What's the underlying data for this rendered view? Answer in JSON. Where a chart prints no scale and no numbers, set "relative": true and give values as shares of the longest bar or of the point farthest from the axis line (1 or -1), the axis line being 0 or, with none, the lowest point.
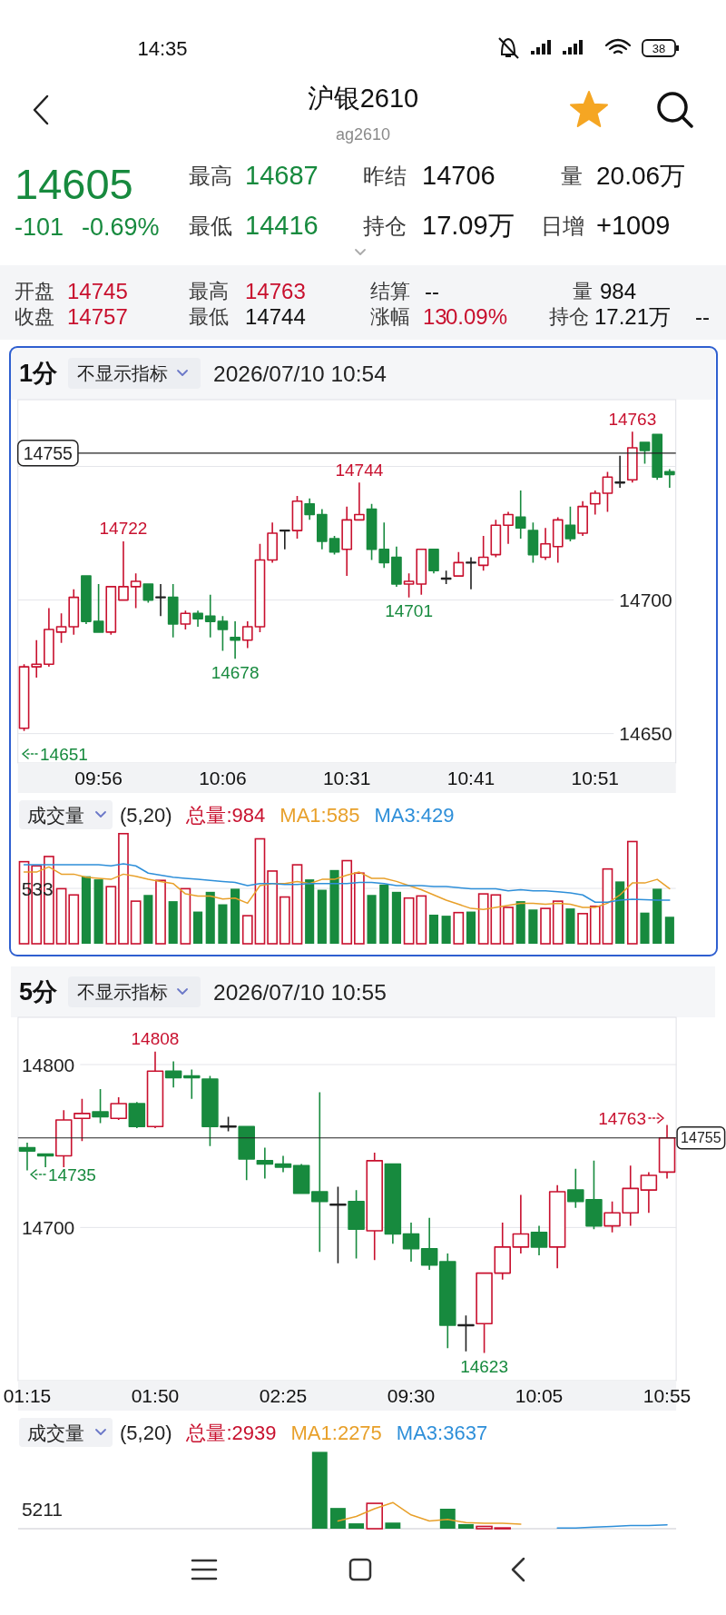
{
  "chart_data": [
    {
      "type": "other",
      "title": "沪银2610",
      "subtitle": "ag2610",
      "annotations": [
        "14:35",
        "38",
        "14605",
        "-101",
        "-0.69%",
        "最高",
        "14687",
        "最低",
        "14416",
        "昨结",
        "14706",
        "持仓",
        "17.09万",
        "量",
        "20.06万",
        "日增",
        "+1009",
        "开盘",
        "14745",
        "最高",
        "14763",
        "结算",
        "--",
        "量",
        "984",
        "收盘",
        "14757",
        "最低",
        "14744",
        "涨幅",
        "13",
        "0.09%",
        "持仓",
        "17.21万",
        "--"
      ]
    },
    {
      "type": "candlestick",
      "title": "1分",
      "subtitle": "2026/07/10 10:54",
      "annotations": [
        "不显示指标",
        {
          "text": "14763",
          "y": 14763
        },
        {
          "text": "14744",
          "y": 14744
        },
        {
          "text": "14722",
          "y": 14722
        },
        {
          "text": "14701",
          "y": 14701
        },
        {
          "text": "14678",
          "y": 14678
        },
        "14651"
      ],
      "categories": [
        null,
        null,
        null,
        null,
        null,
        null,
        "09:56",
        null,
        null,
        null,
        null,
        null,
        null,
        null,
        null,
        null,
        "10:06",
        null,
        null,
        null,
        null,
        null,
        null,
        null,
        null,
        null,
        "10:31",
        null,
        null,
        null,
        null,
        null,
        null,
        null,
        null,
        null,
        "10:41",
        null,
        null,
        null,
        null,
        null,
        null,
        null,
        null,
        null,
        "10:51",
        null,
        null,
        null,
        null,
        null,
        null
      ],
      "ohlc": [
        [
          14652,
          14676,
          14651,
          14675
        ],
        [
          14675,
          14685,
          14671,
          14676
        ],
        [
          14676,
          14697,
          14675,
          14689
        ],
        [
          14688,
          14695,
          14684,
          14690
        ],
        [
          14690,
          14704,
          14687,
          14701
        ],
        [
          14709,
          14709,
          14691,
          14692
        ],
        [
          14692,
          14706,
          14688,
          14688
        ],
        [
          14688,
          14705,
          14687,
          14705
        ],
        [
          14700,
          14722,
          14700,
          14705
        ],
        [
          14705,
          14710,
          14697,
          14707
        ],
        [
          14706,
          14706,
          14699,
          14700
        ],
        [
          14701,
          14706,
          14694,
          14701
        ],
        [
          14701,
          14706,
          14686,
          14691
        ],
        [
          14691,
          14696,
          14689,
          14695
        ],
        [
          14695,
          14696,
          14690,
          14693
        ],
        [
          14694,
          14702,
          14686,
          14692
        ],
        [
          14692,
          14694,
          14681,
          14689
        ],
        [
          14686,
          14692,
          14678,
          14685
        ],
        [
          14685,
          14692,
          14682,
          14690
        ],
        [
          14690,
          14721,
          14688,
          14715
        ],
        [
          14715,
          14729,
          14714,
          14725
        ],
        [
          14726,
          14726,
          14719,
          14726
        ],
        [
          14726,
          14739,
          14723,
          14737
        ],
        [
          14736,
          14738,
          14730,
          14732
        ],
        [
          14732,
          14734,
          14719,
          14722
        ],
        [
          14723,
          14724,
          14717,
          14718
        ],
        [
          14719,
          14735,
          14709,
          14730
        ],
        [
          14730,
          14744,
          14730,
          14732
        ],
        [
          14734,
          14736,
          14715,
          14719
        ],
        [
          14719,
          14729,
          14712,
          14714
        ],
        [
          14716,
          14720,
          14705,
          14706
        ],
        [
          14706,
          14710,
          14701,
          14707
        ],
        [
          14706,
          14719,
          14702,
          14719
        ],
        [
          14719,
          14719,
          14710,
          14711
        ],
        [
          14708,
          14711,
          14706,
          14708
        ],
        [
          14709,
          14718,
          14709,
          14714
        ],
        [
          14714,
          14716,
          14704,
          14714
        ],
        [
          14713,
          14724,
          14711,
          14716
        ],
        [
          14717,
          14730,
          14716,
          14728
        ],
        [
          14728,
          14733,
          14721,
          14732
        ],
        [
          14731,
          14741,
          14723,
          14727
        ],
        [
          14726,
          14729,
          14714,
          14717
        ],
        [
          14716,
          14727,
          14715,
          14721
        ],
        [
          14720,
          14731,
          14714,
          14730
        ],
        [
          14728,
          14735,
          14722,
          14723
        ],
        [
          14725,
          14737,
          14724,
          14735
        ],
        [
          14736,
          14741,
          14732,
          14740
        ],
        [
          14740,
          14748,
          14733,
          14746
        ],
        [
          14744,
          14754,
          14742,
          14744
        ],
        [
          14745,
          14763,
          14744,
          14757
        ],
        [
          14759,
          14759,
          14751,
          14756
        ],
        [
          14762,
          14762,
          14745,
          14746
        ],
        [
          14748,
          14749,
          14742,
          14747
        ]
      ],
      "colors": [
        "#c8102e",
        "#c8102e",
        "#c8102e",
        "#c8102e",
        "#c8102e",
        "#178a3e",
        "#178a3e",
        "#c8102e",
        "#c8102e",
        "#c8102e",
        "#178a3e",
        "#222222",
        "#178a3e",
        "#c8102e",
        "#178a3e",
        "#178a3e",
        "#178a3e",
        "#178a3e",
        "#c8102e",
        "#c8102e",
        "#c8102e",
        "#222222",
        "#c8102e",
        "#178a3e",
        "#178a3e",
        "#178a3e",
        "#c8102e",
        "#c8102e",
        "#178a3e",
        "#178a3e",
        "#178a3e",
        "#c8102e",
        "#c8102e",
        "#178a3e",
        "#222222",
        "#c8102e",
        "#222222",
        "#c8102e",
        "#c8102e",
        "#c8102e",
        "#178a3e",
        "#178a3e",
        "#c8102e",
        "#c8102e",
        "#178a3e",
        "#c8102e",
        "#c8102e",
        "#c8102e",
        "#222222",
        "#c8102e",
        "#178a3e",
        "#178a3e",
        "#178a3e"
      ],
      "ylim": [
        14639,
        14775
      ],
      "yticks": [
        14650,
        14700,
        {
          "value": 14750,
          "label": null
        }
      ],
      "grid": "y",
      "ref_lines": [
        {
          "axis": "y",
          "value": 14755,
          "label": "14755",
          "color": "#222222"
        }
      ]
    },
    {
      "type": "bar",
      "title": "成交量",
      "subtitle": "(5,20)",
      "categories": [
        null,
        null,
        null,
        null,
        null,
        null,
        null,
        null,
        null,
        null,
        null,
        null,
        null,
        null,
        null,
        null,
        null,
        null,
        null,
        null,
        null,
        null,
        null,
        null,
        null,
        null,
        null,
        null,
        null,
        null,
        null,
        null,
        null,
        null,
        null,
        null,
        null,
        null,
        null,
        null,
        null,
        null,
        null,
        null,
        null,
        null,
        null,
        null,
        null,
        null,
        null,
        null,
        null
      ],
      "series": [
        {
          "name": "总量:984",
          "color": "#c8102e",
          "colors": [
            "#c8102e",
            "#c8102e",
            "#c8102e",
            "#c8102e",
            "#c8102e",
            "#178a3e",
            "#178a3e",
            "#c8102e",
            "#c8102e",
            "#c8102e",
            "#178a3e",
            "#c8102e",
            "#178a3e",
            "#c8102e",
            "#178a3e",
            "#178a3e",
            "#178a3e",
            "#178a3e",
            "#c8102e",
            "#c8102e",
            "#c8102e",
            "#c8102e",
            "#c8102e",
            "#178a3e",
            "#178a3e",
            "#178a3e",
            "#c8102e",
            "#c8102e",
            "#178a3e",
            "#178a3e",
            "#178a3e",
            "#c8102e",
            "#c8102e",
            "#178a3e",
            "#178a3e",
            "#c8102e",
            "#178a3e",
            "#c8102e",
            "#c8102e",
            "#c8102e",
            "#178a3e",
            "#178a3e",
            "#c8102e",
            "#c8102e",
            "#178a3e",
            "#c8102e",
            "#c8102e",
            "#c8102e",
            "#178a3e",
            "#c8102e",
            "#178a3e",
            "#178a3e",
            "#178a3e"
          ],
          "values": [
            790,
            750,
            840,
            530,
            470,
            650,
            620,
            550,
            1060,
            410,
            470,
            610,
            410,
            530,
            310,
            500,
            380,
            530,
            270,
            1010,
            700,
            450,
            760,
            620,
            520,
            710,
            800,
            680,
            470,
            570,
            500,
            440,
            460,
            280,
            270,
            300,
            310,
            480,
            470,
            350,
            410,
            330,
            340,
            410,
            340,
            290,
            360,
            720,
            600,
            984,
            300,
            530,
            260
          ]
        },
        {
          "type": "line",
          "name": "MA1:585",
          "color": "#e8a02a",
          "values": [
            690,
            690,
            740,
            670,
            670,
            640,
            630,
            620,
            670,
            650,
            620,
            600,
            580,
            480,
            460,
            460,
            430,
            440,
            390,
            560,
            580,
            580,
            600,
            580,
            620,
            620,
            660,
            690,
            630,
            630,
            600,
            560,
            520,
            470,
            420,
            380,
            340,
            330,
            350,
            370,
            390,
            390,
            380,
            390,
            380,
            350,
            350,
            390,
            470,
            585,
            585,
            620,
            530
          ]
        },
        {
          "type": "line",
          "name": "MA3:429",
          "color": "#2e8fd9",
          "values": [
            760,
            760,
            760,
            760,
            760,
            760,
            760,
            750,
            770,
            750,
            680,
            660,
            640,
            630,
            620,
            610,
            600,
            590,
            560,
            580,
            580,
            570,
            570,
            580,
            580,
            580,
            580,
            590,
            590,
            580,
            560,
            560,
            560,
            550,
            550,
            540,
            530,
            530,
            530,
            510,
            520,
            510,
            510,
            500,
            490,
            470,
            400,
            400,
            420,
            429,
            425,
            420,
            420
          ]
        }
      ],
      "ylim": [
        0,
        1080
      ],
      "yticks": [
        533
      ],
      "grid": "y"
    },
    {
      "type": "candlestick",
      "title": "5分",
      "subtitle": "2026/07/10 10:55",
      "annotations": [
        "不显示指标",
        {
          "text": "14808",
          "y": 14808
        },
        "14763",
        "14735",
        {
          "text": "14623",
          "y": 14623
        }
      ],
      "categories": [
        "01:15",
        null,
        null,
        null,
        null,
        null,
        null,
        "01:50",
        null,
        null,
        null,
        null,
        null,
        null,
        "02:25",
        null,
        null,
        null,
        null,
        null,
        null,
        "09:30",
        null,
        null,
        null,
        null,
        null,
        null,
        "10:05",
        null,
        null,
        null,
        null,
        null,
        null,
        "10:55"
      ],
      "ohlc": [
        [
          14749,
          14752,
          14735,
          14747
        ],
        [
          14745,
          14745,
          14737,
          14744
        ],
        [
          14744,
          14772,
          14737,
          14766
        ],
        [
          14767,
          14779,
          14753,
          14770
        ],
        [
          14771,
          14785,
          14764,
          14768
        ],
        [
          14767,
          14780,
          14766,
          14776
        ],
        [
          14776,
          14777,
          14761,
          14762
        ],
        [
          14762,
          14808,
          14761,
          14796
        ],
        [
          14796,
          14802,
          14786,
          14792
        ],
        [
          14793,
          14797,
          14779,
          14792
        ],
        [
          14791,
          14793,
          14750,
          14762
        ],
        [
          14762,
          14768,
          14759,
          14762
        ],
        [
          14762,
          14762,
          14729,
          14742
        ],
        [
          14741,
          14749,
          14730,
          14739
        ],
        [
          14739,
          14744,
          14734,
          14737
        ],
        [
          14738,
          14739,
          14721,
          14721
        ],
        [
          14722,
          14783,
          14685,
          14716
        ],
        [
          14714,
          14725,
          14678,
          14714
        ],
        [
          14716,
          14723,
          14681,
          14699
        ],
        [
          14698,
          14746,
          14680,
          14741
        ],
        [
          14739,
          14739,
          14690,
          14696
        ],
        [
          14696,
          14703,
          14679,
          14687
        ],
        [
          14687,
          14706,
          14674,
          14677
        ],
        [
          14679,
          14684,
          14626,
          14640
        ],
        [
          14640,
          14646,
          14624,
          14640
        ],
        [
          14641,
          14672,
          14623,
          14672
        ],
        [
          14672,
          14703,
          14668,
          14688
        ],
        [
          14688,
          14720,
          14684,
          14696
        ],
        [
          14697,
          14701,
          14683,
          14688
        ],
        [
          14688,
          14726,
          14675,
          14722
        ],
        [
          14723,
          14736,
          14712,
          14716
        ],
        [
          14717,
          14741,
          14699,
          14701
        ],
        [
          14701,
          14716,
          14697,
          14709
        ],
        [
          14709,
          14738,
          14701,
          14724
        ],
        [
          14723,
          14734,
          14709,
          14732
        ],
        [
          14734,
          14763,
          14730,
          14755
        ]
      ],
      "colors": [
        "#178a3e",
        "#178a3e",
        "#c8102e",
        "#c8102e",
        "#178a3e",
        "#c8102e",
        "#178a3e",
        "#c8102e",
        "#178a3e",
        "#178a3e",
        "#178a3e",
        "#222222",
        "#178a3e",
        "#178a3e",
        "#178a3e",
        "#178a3e",
        "#178a3e",
        "#222222",
        "#178a3e",
        "#c8102e",
        "#178a3e",
        "#178a3e",
        "#178a3e",
        "#178a3e",
        "#222222",
        "#c8102e",
        "#c8102e",
        "#c8102e",
        "#178a3e",
        "#c8102e",
        "#178a3e",
        "#178a3e",
        "#c8102e",
        "#c8102e",
        "#c8102e",
        "#c8102e"
      ],
      "ylim": [
        14606,
        14829
      ],
      "yticks": [
        14700,
        14800
      ],
      "grid": "y",
      "ref_lines": [
        {
          "axis": "y",
          "value": 14755,
          "label": "14755",
          "color": "#222222"
        }
      ]
    },
    {
      "type": "bar",
      "title": "成交量",
      "subtitle": "(5,20)",
      "annotations": [
        "5211"
      ],
      "relative": true,
      "categories": [
        null,
        null,
        null,
        null,
        null,
        null,
        null,
        null,
        null,
        null,
        null,
        null,
        null,
        null,
        null,
        null,
        null,
        null,
        null,
        null,
        null,
        null,
        null,
        null,
        null,
        null,
        null,
        null,
        null,
        null,
        null,
        null,
        null,
        null,
        null,
        null
      ],
      "series": [
        {
          "name": "总量:2939",
          "color": "#c8102e",
          "colors": [
            null,
            null,
            null,
            null,
            null,
            null,
            null,
            null,
            null,
            null,
            null,
            null,
            null,
            null,
            null,
            null,
            "#178a3e",
            "#178a3e",
            "#178a3e",
            "#c8102e",
            "#178a3e",
            null,
            null,
            "#178a3e",
            "#178a3e",
            "#c8102e",
            "#c8102e",
            null,
            null,
            null,
            null,
            null,
            null,
            null,
            null,
            null
          ],
          "values": [
            null,
            null,
            null,
            null,
            null,
            null,
            null,
            null,
            null,
            null,
            null,
            null,
            null,
            null,
            null,
            null,
            1,
            0.27,
            0.07,
            0.33,
            0.08,
            null,
            null,
            0.26,
            0.06,
            0.03,
            0.01,
            null,
            null,
            null,
            null,
            null,
            null,
            null,
            null,
            null
          ]
        },
        {
          "type": "line",
          "name": "MA1:2275",
          "color": "#e8a02a",
          "values": [
            null,
            null,
            null,
            null,
            null,
            null,
            null,
            null,
            null,
            null,
            null,
            null,
            null,
            null,
            null,
            null,
            null,
            0.1,
            0.16,
            0.26,
            0.34,
            0.18,
            0.1,
            0.12,
            0.08,
            0.07,
            0.07,
            0.06,
            null,
            null,
            null,
            null,
            null,
            null,
            null,
            null
          ]
        },
        {
          "type": "line",
          "name": "MA3:3637",
          "color": "#2e8fd9",
          "values": [
            null,
            null,
            null,
            null,
            null,
            null,
            null,
            null,
            null,
            null,
            null,
            null,
            null,
            null,
            null,
            null,
            null,
            null,
            null,
            null,
            null,
            null,
            null,
            null,
            null,
            null,
            null,
            null,
            null,
            0.01,
            0.01,
            0.02,
            0.03,
            0.04,
            0.04,
            0.05
          ]
        }
      ]
    }
  ]
}
